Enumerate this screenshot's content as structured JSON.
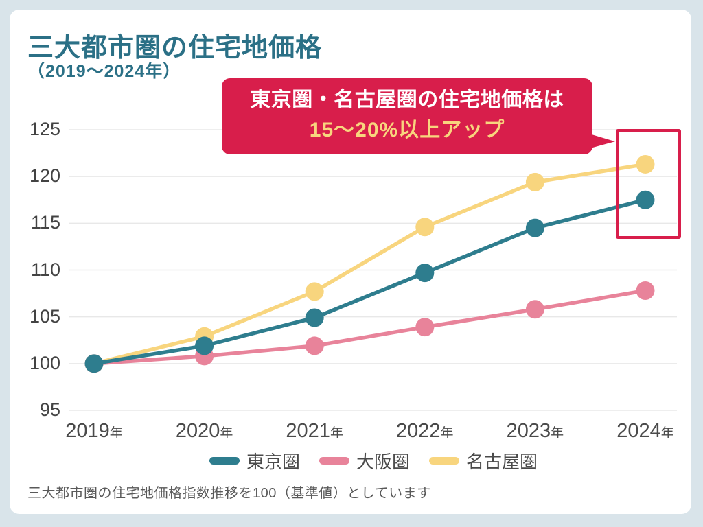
{
  "page": {
    "background_color": "#d9e4ea",
    "card_color": "#ffffff"
  },
  "header": {
    "title": "三大都市圏の住宅地価格",
    "subtitle": "（2019〜2024年）",
    "title_color": "#2b7086"
  },
  "callout": {
    "line1": "東京圏・名古屋圏の住宅地価格は",
    "line2": "15〜20%以上アップ",
    "background_color": "#d81e4b",
    "line1_color": "#ffffff",
    "line2_color": "#f8d57e"
  },
  "highlight": {
    "description": "red box around 2024 東京圏 and 名古屋圏 data points",
    "border_color": "#d81e4b"
  },
  "chart_data": {
    "type": "line",
    "x": [
      "2019年",
      "2020年",
      "2021年",
      "2022年",
      "2023年",
      "2024年"
    ],
    "x_years": [
      "2019",
      "2020",
      "2021",
      "2022",
      "2023",
      "2024"
    ],
    "x_suffix": "年",
    "series": [
      {
        "name": "東京圏",
        "color": "#2e7d8e",
        "values": [
          100,
          101.9,
          104.9,
          109.7,
          114.5,
          117.5
        ]
      },
      {
        "name": "大阪圏",
        "color": "#e8839a",
        "values": [
          100,
          100.8,
          101.9,
          103.9,
          105.8,
          107.8
        ]
      },
      {
        "name": "名古屋圏",
        "color": "#f8d57e",
        "values": [
          100,
          102.9,
          107.7,
          114.6,
          119.4,
          121.3
        ]
      }
    ],
    "yticks": [
      95,
      100,
      105,
      110,
      115,
      120,
      125
    ],
    "ylim": [
      95,
      125
    ],
    "baseline_value": 100,
    "grid": true,
    "grid_color": "#e8e8e8",
    "tick_color": "#434343",
    "legend_position": "bottom"
  },
  "footer": {
    "note": "三大都市圏の住宅地価格指数推移を100（基準値）としています"
  }
}
